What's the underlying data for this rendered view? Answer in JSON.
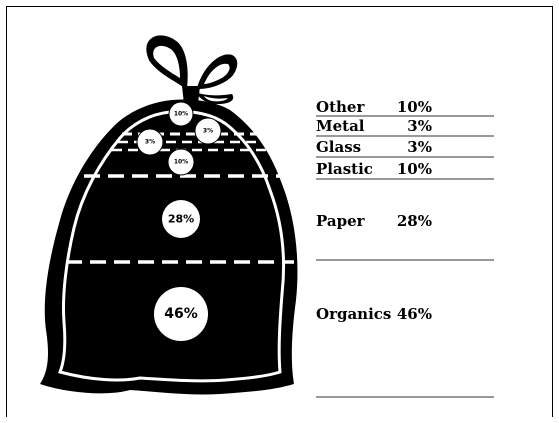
{
  "colors": {
    "bag": "#000000",
    "background": "#ffffff",
    "rule": "#999999"
  },
  "chart_data": {
    "type": "pie",
    "unit": "%",
    "categories": [
      "Other",
      "Metal",
      "Glass",
      "Plastic",
      "Paper",
      "Organics"
    ],
    "values": [
      10,
      3,
      3,
      10,
      28,
      46
    ],
    "labels": [
      "10%",
      "3%",
      "3%",
      "10%",
      "28%",
      "46%"
    ]
  }
}
